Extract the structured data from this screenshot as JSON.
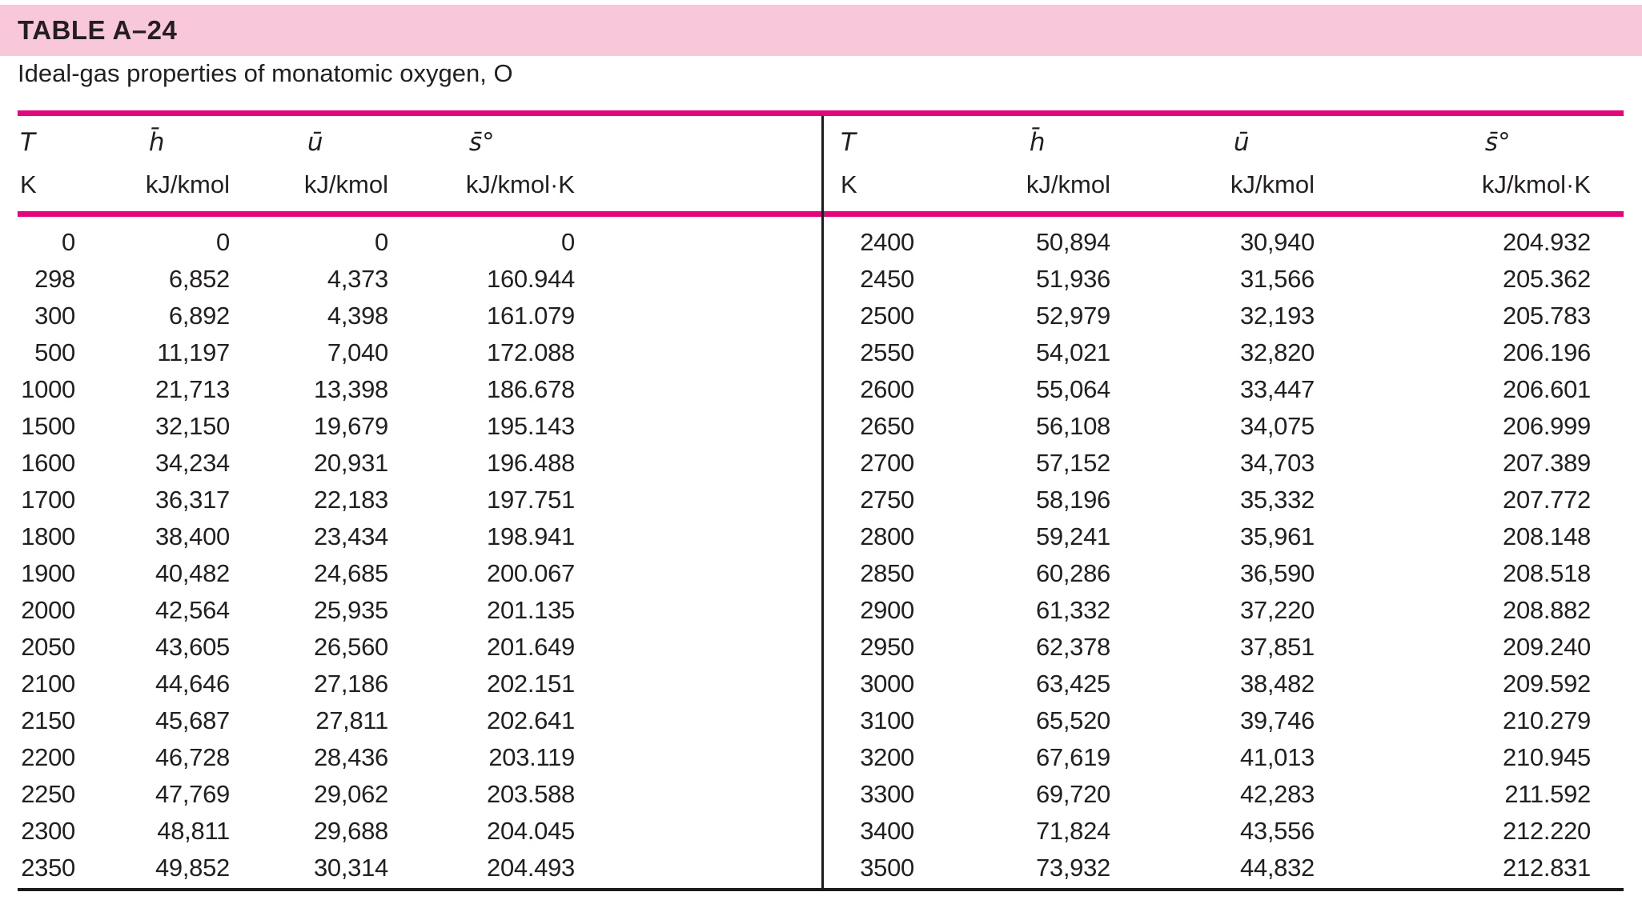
{
  "colors": {
    "band_pink": "#f9c7da",
    "rule_magenta": "#e2077d",
    "line_black": "#1b1b1b",
    "text": "#231f20"
  },
  "table": {
    "id": "TABLE A–24",
    "subtitle": "Ideal-gas properties of monatomic oxygen, O",
    "columns": {
      "t_symbol": "T",
      "t_unit": "K",
      "h_symbol": "h̄",
      "h_unit": "kJ/kmol",
      "u_symbol": "ū",
      "u_unit": "kJ/kmol",
      "s_symbol": "s̄°",
      "s_unit": "kJ/kmol·K"
    },
    "left_rows": [
      [
        "0",
        "0",
        "0",
        "0"
      ],
      [
        "298",
        "6,852",
        "4,373",
        "160.944"
      ],
      [
        "300",
        "6,892",
        "4,398",
        "161.079"
      ],
      [
        "500",
        "11,197",
        "7,040",
        "172.088"
      ],
      [
        "1000",
        "21,713",
        "13,398",
        "186.678"
      ],
      [
        "1500",
        "32,150",
        "19,679",
        "195.143"
      ],
      [
        "1600",
        "34,234",
        "20,931",
        "196.488"
      ],
      [
        "1700",
        "36,317",
        "22,183",
        "197.751"
      ],
      [
        "1800",
        "38,400",
        "23,434",
        "198.941"
      ],
      [
        "1900",
        "40,482",
        "24,685",
        "200.067"
      ],
      [
        "2000",
        "42,564",
        "25,935",
        "201.135"
      ],
      [
        "2050",
        "43,605",
        "26,560",
        "201.649"
      ],
      [
        "2100",
        "44,646",
        "27,186",
        "202.151"
      ],
      [
        "2150",
        "45,687",
        "27,811",
        "202.641"
      ],
      [
        "2200",
        "46,728",
        "28,436",
        "203.119"
      ],
      [
        "2250",
        "47,769",
        "29,062",
        "203.588"
      ],
      [
        "2300",
        "48,811",
        "29,688",
        "204.045"
      ],
      [
        "2350",
        "49,852",
        "30,314",
        "204.493"
      ]
    ],
    "right_rows": [
      [
        "2400",
        "50,894",
        "30,940",
        "204.932"
      ],
      [
        "2450",
        "51,936",
        "31,566",
        "205.362"
      ],
      [
        "2500",
        "52,979",
        "32,193",
        "205.783"
      ],
      [
        "2550",
        "54,021",
        "32,820",
        "206.196"
      ],
      [
        "2600",
        "55,064",
        "33,447",
        "206.601"
      ],
      [
        "2650",
        "56,108",
        "34,075",
        "206.999"
      ],
      [
        "2700",
        "57,152",
        "34,703",
        "207.389"
      ],
      [
        "2750",
        "58,196",
        "35,332",
        "207.772"
      ],
      [
        "2800",
        "59,241",
        "35,961",
        "208.148"
      ],
      [
        "2850",
        "60,286",
        "36,590",
        "208.518"
      ],
      [
        "2900",
        "61,332",
        "37,220",
        "208.882"
      ],
      [
        "2950",
        "62,378",
        "37,851",
        "209.240"
      ],
      [
        "3000",
        "63,425",
        "38,482",
        "209.592"
      ],
      [
        "3100",
        "65,520",
        "39,746",
        "210.279"
      ],
      [
        "3200",
        "67,619",
        "41,013",
        "210.945"
      ],
      [
        "3300",
        "69,720",
        "42,283",
        "211.592"
      ],
      [
        "3400",
        "71,824",
        "43,556",
        "212.220"
      ],
      [
        "3500",
        "73,932",
        "44,832",
        "212.831"
      ]
    ]
  }
}
